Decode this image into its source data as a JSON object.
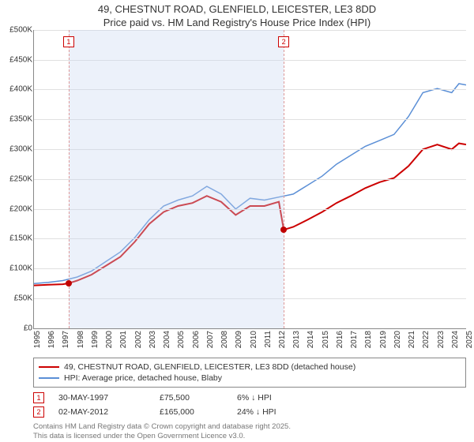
{
  "title_line1": "49, CHESTNUT ROAD, GLENFIELD, LEICESTER, LE3 8DD",
  "title_line2": "Price paid vs. HM Land Registry's House Price Index (HPI)",
  "chart": {
    "type": "line",
    "background_color": "#ffffff",
    "grid_color": "#e0e0e0",
    "axis_color": "#888888",
    "shade_color": "rgba(200,215,240,0.35)",
    "y": {
      "min": 0,
      "max": 500000,
      "step": 50000,
      "prefix": "£",
      "suffix": "K",
      "divisor": 1000
    },
    "x": {
      "min": 1995,
      "max": 2025,
      "step": 1
    },
    "shade_start": 1997.41,
    "shade_end": 2012.34,
    "markers": [
      {
        "id": "1",
        "x": 1997.41,
        "y": 75500,
        "color": "#c00000"
      },
      {
        "id": "2",
        "x": 2012.34,
        "y": 165000,
        "color": "#c00000"
      }
    ],
    "series": [
      {
        "name": "price_paid",
        "label": "49, CHESTNUT ROAD, GLENFIELD, LEICESTER, LE3 8DD (detached house)",
        "color": "#cc0000",
        "width": 2,
        "points": [
          [
            1995,
            72000
          ],
          [
            1996,
            73000
          ],
          [
            1997,
            74000
          ],
          [
            1997.41,
            75500
          ],
          [
            1998,
            80000
          ],
          [
            1999,
            90000
          ],
          [
            2000,
            105000
          ],
          [
            2001,
            120000
          ],
          [
            2002,
            145000
          ],
          [
            2003,
            175000
          ],
          [
            2004,
            195000
          ],
          [
            2005,
            205000
          ],
          [
            2006,
            210000
          ],
          [
            2007,
            222000
          ],
          [
            2008,
            212000
          ],
          [
            2009,
            190000
          ],
          [
            2010,
            205000
          ],
          [
            2011,
            205000
          ],
          [
            2012,
            212000
          ],
          [
            2012.34,
            165000
          ],
          [
            2012.6,
            167000
          ],
          [
            2013,
            170000
          ],
          [
            2014,
            182000
          ],
          [
            2015,
            195000
          ],
          [
            2016,
            210000
          ],
          [
            2017,
            222000
          ],
          [
            2018,
            235000
          ],
          [
            2019,
            245000
          ],
          [
            2020,
            252000
          ],
          [
            2021,
            272000
          ],
          [
            2022,
            300000
          ],
          [
            2023,
            308000
          ],
          [
            2024,
            300000
          ],
          [
            2024.5,
            310000
          ],
          [
            2025,
            308000
          ]
        ]
      },
      {
        "name": "hpi",
        "label": "HPI: Average price, detached house, Blaby",
        "color": "#5b8fd6",
        "width": 1.5,
        "points": [
          [
            1995,
            75000
          ],
          [
            1996,
            77000
          ],
          [
            1997,
            80000
          ],
          [
            1998,
            86000
          ],
          [
            1999,
            96000
          ],
          [
            2000,
            112000
          ],
          [
            2001,
            128000
          ],
          [
            2002,
            152000
          ],
          [
            2003,
            182000
          ],
          [
            2004,
            205000
          ],
          [
            2005,
            215000
          ],
          [
            2006,
            222000
          ],
          [
            2007,
            238000
          ],
          [
            2008,
            225000
          ],
          [
            2009,
            200000
          ],
          [
            2010,
            218000
          ],
          [
            2011,
            215000
          ],
          [
            2012,
            220000
          ],
          [
            2013,
            225000
          ],
          [
            2014,
            240000
          ],
          [
            2015,
            255000
          ],
          [
            2016,
            275000
          ],
          [
            2017,
            290000
          ],
          [
            2018,
            305000
          ],
          [
            2019,
            315000
          ],
          [
            2020,
            325000
          ],
          [
            2021,
            355000
          ],
          [
            2022,
            395000
          ],
          [
            2023,
            402000
          ],
          [
            2024,
            395000
          ],
          [
            2024.5,
            410000
          ],
          [
            2025,
            408000
          ]
        ]
      }
    ]
  },
  "legend": {
    "series1_label": "49, CHESTNUT ROAD, GLENFIELD, LEICESTER, LE3 8DD (detached house)",
    "series2_label": "HPI: Average price, detached house, Blaby"
  },
  "transactions": [
    {
      "id": "1",
      "date": "30-MAY-1997",
      "price": "£75,500",
      "delta": "6% ↓ HPI"
    },
    {
      "id": "2",
      "date": "02-MAY-2012",
      "price": "£165,000",
      "delta": "24% ↓ HPI"
    }
  ],
  "footer_line1": "Contains HM Land Registry data © Crown copyright and database right 2025.",
  "footer_line2": "This data is licensed under the Open Government Licence v3.0."
}
